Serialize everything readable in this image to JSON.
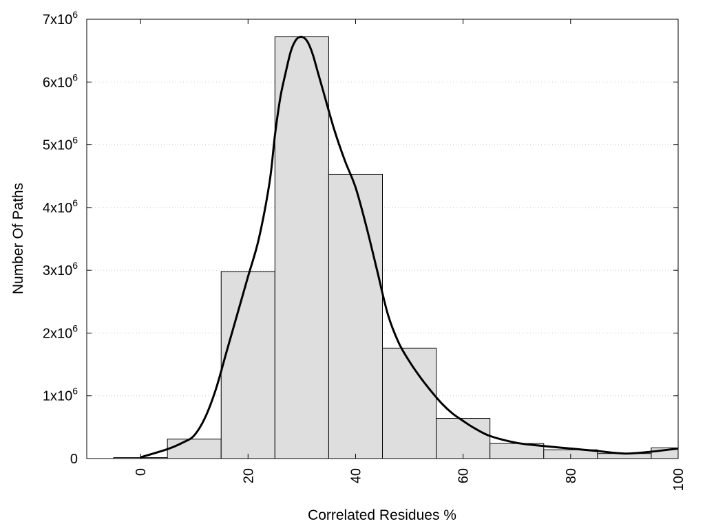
{
  "chart_data": {
    "type": "bar",
    "xlabel": "Correlated Residues %",
    "ylabel": "Number Of Paths",
    "xlim": [
      -10,
      100
    ],
    "ylim": [
      0,
      7000000
    ],
    "grid": true,
    "x_ticks": [
      0,
      20,
      40,
      60,
      80,
      100
    ],
    "y_ticks": [
      {
        "value": 0,
        "label": "0",
        "exp": ""
      },
      {
        "value": 1000000,
        "label": "1x10",
        "exp": "6"
      },
      {
        "value": 2000000,
        "label": "2x10",
        "exp": "6"
      },
      {
        "value": 3000000,
        "label": "3x10",
        "exp": "6"
      },
      {
        "value": 4000000,
        "label": "4x10",
        "exp": "6"
      },
      {
        "value": 5000000,
        "label": "5x10",
        "exp": "6"
      },
      {
        "value": 6000000,
        "label": "6x10",
        "exp": "6"
      },
      {
        "value": 7000000,
        "label": "7x10",
        "exp": "6"
      }
    ],
    "bin_width": 10,
    "bins": [
      {
        "center": 0,
        "value": 15000
      },
      {
        "center": 10,
        "value": 310000
      },
      {
        "center": 20,
        "value": 2980000
      },
      {
        "center": 30,
        "value": 6720000
      },
      {
        "center": 40,
        "value": 4530000
      },
      {
        "center": 50,
        "value": 1760000
      },
      {
        "center": 60,
        "value": 640000
      },
      {
        "center": 70,
        "value": 240000
      },
      {
        "center": 80,
        "value": 140000
      },
      {
        "center": 90,
        "value": 80000
      },
      {
        "center": 100,
        "value": 170000
      }
    ],
    "curve": {
      "x": [
        0,
        5,
        8,
        10,
        12,
        14,
        16,
        18,
        20,
        22,
        24,
        25,
        26,
        27,
        28,
        29,
        30,
        31,
        32,
        33,
        34,
        36,
        38,
        40,
        42,
        44,
        46,
        48,
        50,
        52,
        54,
        56,
        58,
        60,
        62,
        65,
        70,
        75,
        80,
        85,
        90,
        95,
        100
      ],
      "y": [
        20000,
        150000,
        260000,
        370000,
        650000,
        1100000,
        1700000,
        2300000,
        2900000,
        3500000,
        4400000,
        5150000,
        5750000,
        6150000,
        6500000,
        6680000,
        6720000,
        6650000,
        6450000,
        6150000,
        5850000,
        5250000,
        4750000,
        4320000,
        3700000,
        3000000,
        2300000,
        1850000,
        1550000,
        1300000,
        1080000,
        880000,
        720000,
        600000,
        490000,
        360000,
        250000,
        200000,
        160000,
        120000,
        80000,
        110000,
        160000
      ]
    },
    "colors": {
      "bar_fill": "#dedede",
      "bar_stroke": "#000000",
      "curve": "#000000",
      "grid": "#c8c8c8"
    }
  }
}
